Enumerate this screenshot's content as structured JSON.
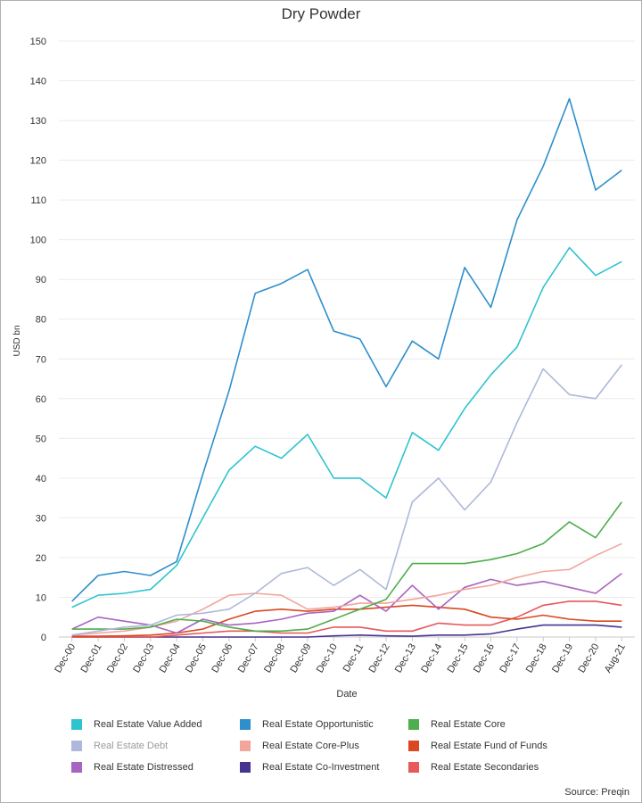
{
  "chart_data": {
    "type": "line",
    "title": "Dry Powder",
    "xlabel": "Date",
    "ylabel": "USD bn",
    "ylim": [
      0,
      150
    ],
    "yticks": [
      0,
      10,
      20,
      30,
      40,
      50,
      60,
      70,
      80,
      90,
      100,
      110,
      120,
      130,
      140,
      150
    ],
    "categories": [
      "Dec-00",
      "Dec-01",
      "Dec-02",
      "Dec-03",
      "Dec-04",
      "Dec-05",
      "Dec-06",
      "Dec-07",
      "Dec-08",
      "Dec-09",
      "Dec-10",
      "Dec-11",
      "Dec-12",
      "Dec-13",
      "Dec-14",
      "Dec-15",
      "Dec-16",
      "Dec-17",
      "Dec-18",
      "Dec-19",
      "Dec-20",
      "Aug-21"
    ],
    "source": "Source: Preqin",
    "series": [
      {
        "name": "Real Estate Value Added",
        "color": "#2ec4cf",
        "visible": true,
        "values": [
          7.5,
          10.5,
          11,
          12,
          18,
          30,
          42,
          48,
          45,
          51,
          40,
          40,
          35,
          51.5,
          47,
          57.5,
          66,
          73,
          88,
          98,
          91,
          94.5
        ]
      },
      {
        "name": "Real Estate Opportunistic",
        "color": "#2e8fcc",
        "visible": true,
        "values": [
          9,
          15.5,
          16.5,
          15.5,
          19,
          41,
          62,
          86.5,
          89,
          92.5,
          77,
          75,
          63,
          74.5,
          70,
          93,
          83,
          105,
          118.5,
          135.5,
          112.5,
          117.5
        ]
      },
      {
        "name": "Real Estate Core",
        "color": "#4cae4c",
        "visible": true,
        "values": [
          2,
          2,
          2,
          2.5,
          4.5,
          4,
          2.5,
          1.5,
          1.5,
          2,
          4.5,
          7,
          9.5,
          18.5,
          18.5,
          18.5,
          19.5,
          21,
          23.5,
          29,
          25,
          34
        ]
      },
      {
        "name": "Real Estate Debt",
        "color": "#aeb8db",
        "visible": true,
        "faded": true,
        "values": [
          0.5,
          1.5,
          2.5,
          3,
          5.5,
          6,
          7,
          11,
          16,
          17.5,
          13,
          17,
          12,
          34,
          40,
          32,
          39,
          54,
          67.5,
          61,
          60,
          68.5
        ]
      },
      {
        "name": "Real Estate Core-Plus",
        "color": "#f2a59b",
        "visible": true,
        "values": [
          0.5,
          1,
          1.5,
          2.5,
          4,
          7,
          10.5,
          11,
          10.5,
          7,
          7.5,
          8.5,
          8.5,
          9.5,
          10.5,
          12,
          13,
          15,
          16.5,
          17,
          20.5,
          23.5
        ]
      },
      {
        "name": "Real Estate Fund of Funds",
        "color": "#d9481f",
        "visible": true,
        "values": [
          0.2,
          0.2,
          0.3,
          0.5,
          1,
          2,
          4.5,
          6.5,
          7,
          6.5,
          7,
          7,
          7.5,
          8,
          7.5,
          7,
          5,
          4.5,
          5.5,
          4.5,
          4,
          4
        ]
      },
      {
        "name": "Real Estate Distressed",
        "color": "#a964c0",
        "visible": true,
        "values": [
          2,
          5,
          4,
          3,
          1,
          4.5,
          3,
          3.5,
          4.5,
          6,
          6.5,
          10.5,
          6.5,
          13,
          7,
          12.5,
          14.5,
          13,
          14,
          12.5,
          11,
          16
        ]
      },
      {
        "name": "Real Estate Co-Investment",
        "color": "#46338f",
        "visible": true,
        "values": [
          0,
          0,
          0,
          0,
          0,
          0,
          0,
          0,
          0,
          0,
          0.3,
          0.5,
          0.3,
          0.2,
          0.5,
          0.5,
          0.8,
          2,
          3,
          3,
          3,
          2.5
        ]
      },
      {
        "name": "Real Estate Secondaries",
        "color": "#e8575a",
        "visible": true,
        "values": [
          0,
          0,
          0,
          0,
          0.5,
          1,
          1.5,
          1.5,
          1,
          1,
          2.5,
          2.5,
          1.5,
          1.5,
          3.5,
          3,
          3,
          5,
          8,
          9,
          9,
          8
        ]
      }
    ]
  }
}
